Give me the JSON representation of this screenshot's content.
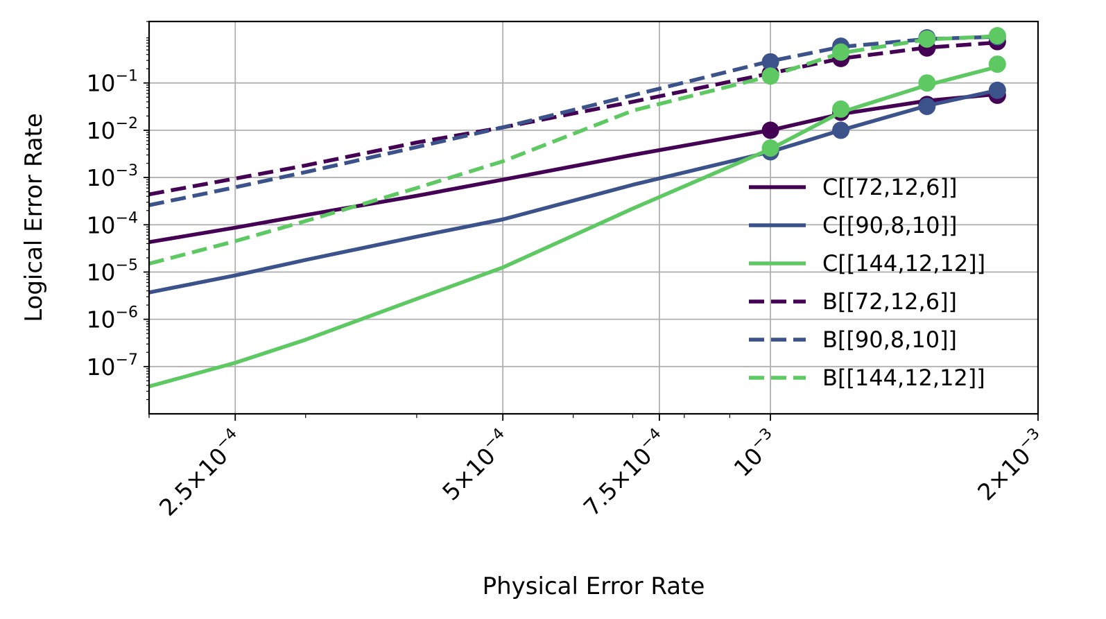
{
  "chart_data": {
    "type": "line",
    "xlabel": "Physical Error Rate",
    "ylabel": "Logical Error Rate",
    "xscale": "log",
    "yscale": "log",
    "xlim": [
      0.0002,
      0.002
    ],
    "ylim": [
      1e-08,
      2
    ],
    "grid": true,
    "legend_position": "lower right",
    "x_ticks": [
      {
        "value": 0.00025,
        "base": "2.5",
        "exp": "−4",
        "mult": true
      },
      {
        "value": 0.0005,
        "base": "5",
        "exp": "−4",
        "mult": true
      },
      {
        "value": 0.00075,
        "base": "7.5",
        "exp": "−4",
        "mult": true
      },
      {
        "value": 0.001,
        "base": "",
        "exp": "−3",
        "mult": false
      },
      {
        "value": 0.002,
        "base": "2",
        "exp": "−3",
        "mult": true
      }
    ],
    "y_ticks": [
      {
        "value": 0.1,
        "exp": "−1"
      },
      {
        "value": 0.01,
        "exp": "−2"
      },
      {
        "value": 0.001,
        "exp": "−3"
      },
      {
        "value": 0.0001,
        "exp": "−4"
      },
      {
        "value": 1e-05,
        "exp": "−5"
      },
      {
        "value": 1e-06,
        "exp": "−6"
      },
      {
        "value": 1e-07,
        "exp": "−7"
      }
    ],
    "series": [
      {
        "name": "C[[72,12,6]]",
        "color": "#440154",
        "dash": "solid",
        "x": [
          0.0002,
          0.00025,
          0.0003,
          0.0004,
          0.0005,
          0.0007,
          0.001,
          0.0012,
          0.0015,
          0.0018
        ],
        "y": [
          4.3e-05,
          8.7e-05,
          0.00016,
          0.00041,
          0.0009,
          0.003,
          0.01,
          0.022,
          0.042,
          0.058
        ],
        "markers_x": [
          0.001,
          0.0012,
          0.0015,
          0.0018
        ],
        "markers_y": [
          0.01,
          0.024,
          0.035,
          0.055
        ]
      },
      {
        "name": "C[[90,8,10]]",
        "color": "#3b528b",
        "dash": "solid",
        "x": [
          0.0002,
          0.00025,
          0.0003,
          0.0004,
          0.0005,
          0.0007,
          0.001,
          0.0012,
          0.0015,
          0.0018
        ],
        "y": [
          3.7e-06,
          8.5e-06,
          1.8e-05,
          5.6e-05,
          0.00013,
          0.0007,
          0.0035,
          0.01,
          0.033,
          0.07
        ],
        "markers_x": [
          0.001,
          0.0012,
          0.0015,
          0.0018
        ],
        "markers_y": [
          0.0035,
          0.01,
          0.032,
          0.07
        ]
      },
      {
        "name": "C[[144,12,12]]",
        "color": "#5ec962",
        "dash": "solid",
        "x": [
          0.0002,
          0.00025,
          0.0003,
          0.0004,
          0.0005,
          0.0007,
          0.001,
          0.0012,
          0.0015,
          0.0018
        ],
        "y": [
          3.8e-08,
          1.2e-07,
          3.7e-07,
          2.7e-06,
          1.25e-05,
          0.00022,
          0.004,
          0.024,
          0.09,
          0.22
        ],
        "markers_x": [
          0.001,
          0.0012,
          0.0015,
          0.0018
        ],
        "markers_y": [
          0.0042,
          0.028,
          0.1,
          0.25
        ]
      },
      {
        "name": "B[[72,12,6]]",
        "color": "#440154",
        "dash": "dashed",
        "x": [
          0.0002,
          0.00025,
          0.0003,
          0.0004,
          0.0005,
          0.0007,
          0.001,
          0.0012,
          0.0015,
          0.0018
        ],
        "y": [
          0.00044,
          0.00095,
          0.0018,
          0.0055,
          0.0115,
          0.04,
          0.16,
          0.33,
          0.56,
          0.72
        ],
        "markers_x": [
          0.001,
          0.0012,
          0.0015,
          0.0018
        ],
        "markers_y": [
          0.16,
          0.33,
          0.55,
          0.75
        ]
      },
      {
        "name": "B[[90,8,10]]",
        "color": "#3b528b",
        "dash": "dashed",
        "x": [
          0.0002,
          0.00025,
          0.0003,
          0.0004,
          0.0005,
          0.0007,
          0.001,
          0.0012,
          0.0015,
          0.0018
        ],
        "y": [
          0.00026,
          0.00062,
          0.0013,
          0.0044,
          0.0115,
          0.055,
          0.29,
          0.58,
          0.85,
          0.95
        ],
        "markers_x": [
          0.001,
          0.0012,
          0.0015,
          0.0018
        ],
        "markers_y": [
          0.28,
          0.6,
          0.9,
          0.95
        ]
      },
      {
        "name": "B[[144,12,12]]",
        "color": "#5ec962",
        "dash": "dashed",
        "x": [
          0.0002,
          0.00025,
          0.0003,
          0.0004,
          0.0005,
          0.0007,
          0.001,
          0.0012,
          0.0015,
          0.0018
        ],
        "y": [
          1.5e-05,
          4.5e-05,
          0.00012,
          0.0006,
          0.0022,
          0.026,
          0.14,
          0.43,
          0.83,
          0.98
        ],
        "markers_x": [
          0.001,
          0.0012,
          0.0015,
          0.0018
        ],
        "markers_y": [
          0.14,
          0.45,
          0.85,
          1.0
        ]
      }
    ]
  }
}
